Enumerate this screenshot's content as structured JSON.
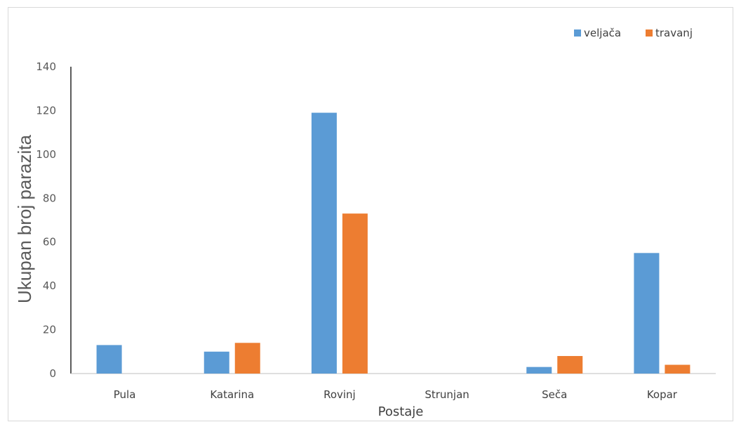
{
  "chart_data": {
    "type": "bar",
    "categories": [
      "Pula",
      "Katarina",
      "Rovinj",
      "Strunjan",
      "Seča",
      "Kopar"
    ],
    "series": [
      {
        "name": "veljača",
        "color": "#5b9bd5",
        "values": [
          13,
          10,
          119,
          0,
          3,
          55
        ]
      },
      {
        "name": "travanj",
        "color": "#ed7d31",
        "values": [
          0,
          14,
          73,
          0,
          8,
          4
        ]
      }
    ],
    "xlabel": "Postaje",
    "ylabel": "Ukupan broj parazita",
    "ylim": [
      0,
      140
    ],
    "yticks": [
      "0",
      "20",
      "40",
      "60",
      "80",
      "100",
      "120",
      "140"
    ],
    "grid": false,
    "legend_position": "top-right"
  }
}
